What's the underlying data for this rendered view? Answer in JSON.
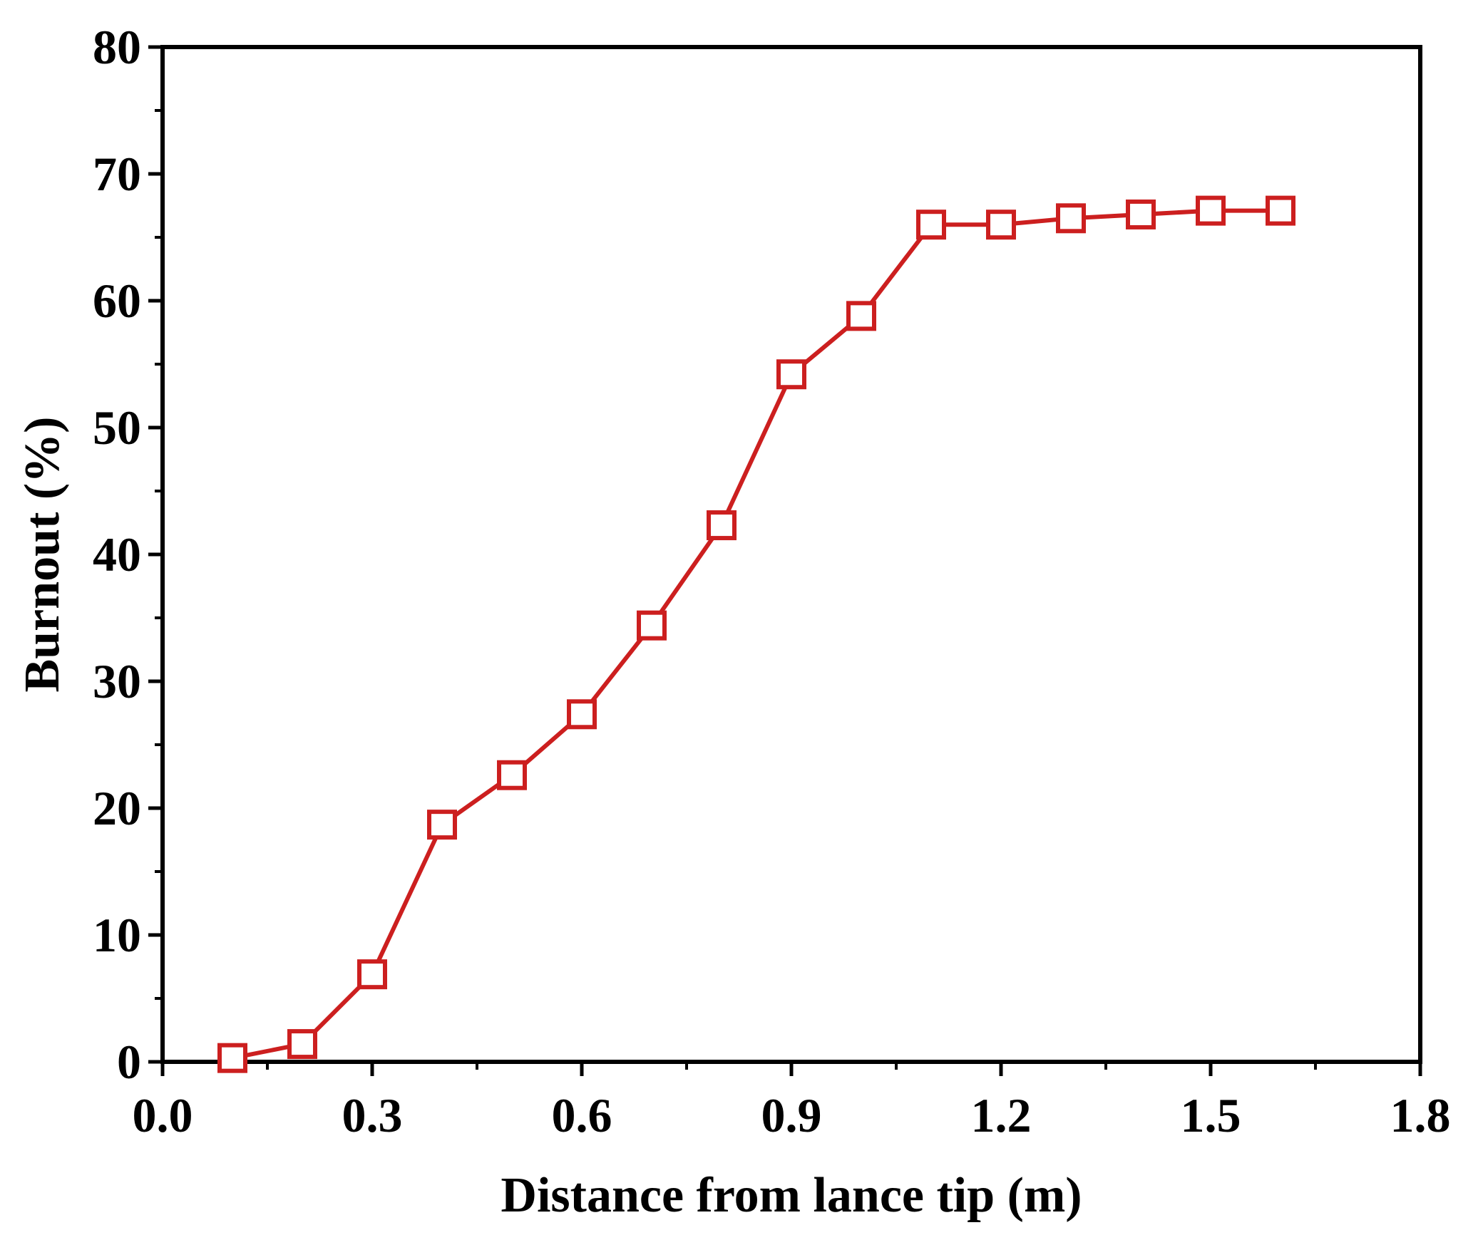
{
  "chart_data": {
    "type": "line",
    "title": "",
    "xlabel": "Distance from lance tip (m)",
    "ylabel": "Burnout (%)",
    "xlim": [
      0.0,
      1.8
    ],
    "ylim": [
      0,
      80
    ],
    "x_ticks": [
      "0.0",
      "0.3",
      "0.6",
      "0.9",
      "1.2",
      "1.5",
      "1.8"
    ],
    "y_ticks": [
      "0",
      "10",
      "20",
      "30",
      "40",
      "50",
      "60",
      "70",
      "80"
    ],
    "grid": false,
    "legend": "none",
    "marker": "open-square",
    "series": [
      {
        "color": "#cc1f1f",
        "x": [
          0.1,
          0.2,
          0.3,
          0.4,
          0.5,
          0.6,
          0.7,
          0.8,
          0.9,
          1.0,
          1.1,
          1.2,
          1.3,
          1.4,
          1.5,
          1.6
        ],
        "y": [
          0.3,
          1.4,
          6.9,
          18.7,
          22.6,
          27.4,
          34.4,
          42.3,
          54.2,
          58.8,
          66.0,
          66.0,
          66.5,
          66.8,
          67.1,
          67.1
        ]
      }
    ]
  }
}
